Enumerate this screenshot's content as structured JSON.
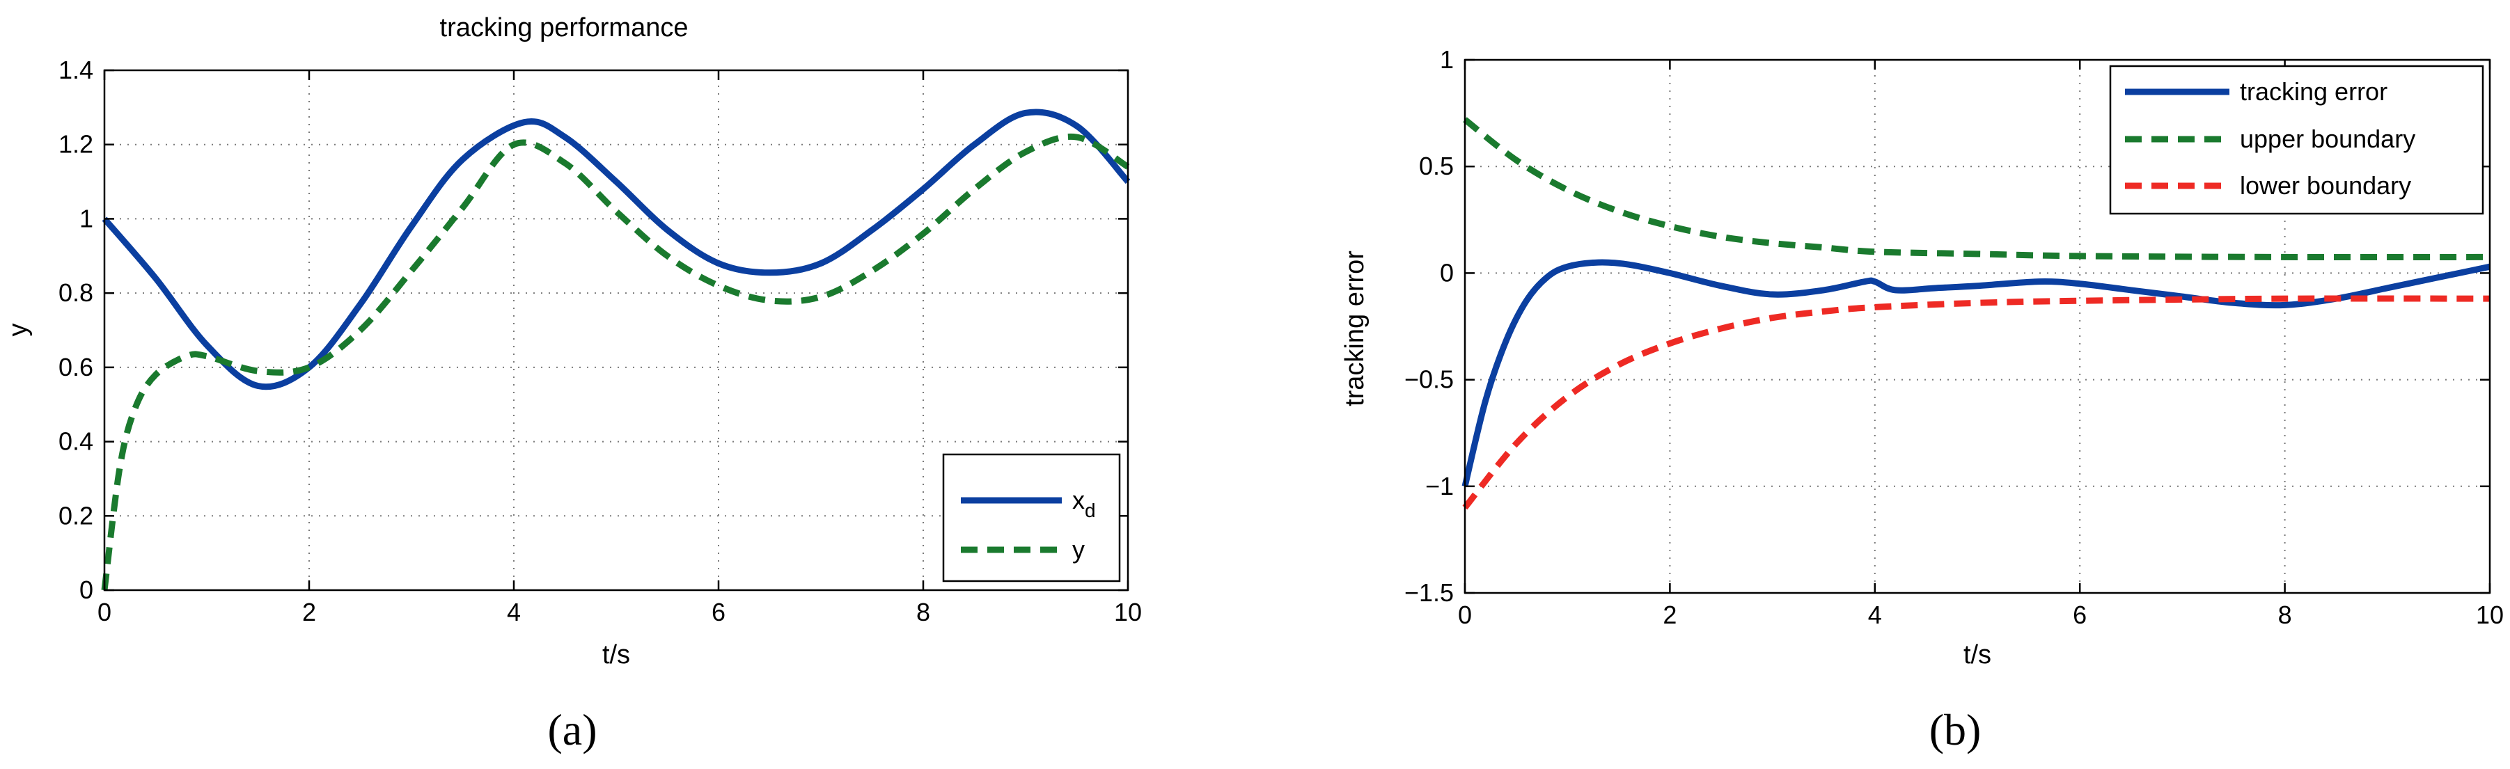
{
  "chart_data": [
    {
      "type": "line",
      "title": "tracking performance",
      "xlabel": "t/s",
      "ylabel": "y",
      "xlim": [
        0,
        10
      ],
      "ylim": [
        0,
        1.4
      ],
      "xticks": [
        0,
        2,
        4,
        6,
        8,
        10
      ],
      "xtick_labels": [
        "0",
        "2",
        "4",
        "6",
        "8",
        "10"
      ],
      "yticks": [
        0,
        0.2,
        0.4,
        0.6,
        0.8,
        1,
        1.2,
        1.4
      ],
      "ytick_labels": [
        "0",
        "0.2",
        "0.4",
        "0.6",
        "0.8",
        "1",
        "1.2",
        "1.4"
      ],
      "grid": true,
      "legend_position": "bottom-right",
      "caption": "(a)",
      "series": [
        {
          "name": "x",
          "subscript": "d",
          "color": "#0b3fa0",
          "dash": "solid",
          "points": [
            [
              0,
              1.0
            ],
            [
              0.5,
              0.84
            ],
            [
              1.0,
              0.66
            ],
            [
              1.5,
              0.55
            ],
            [
              2.0,
              0.6
            ],
            [
              2.5,
              0.77
            ],
            [
              3.0,
              0.98
            ],
            [
              3.5,
              1.16
            ],
            [
              4.1,
              1.26
            ],
            [
              4.5,
              1.22
            ],
            [
              5.0,
              1.1
            ],
            [
              5.5,
              0.97
            ],
            [
              6.0,
              0.88
            ],
            [
              6.5,
              0.855
            ],
            [
              7.0,
              0.88
            ],
            [
              7.5,
              0.97
            ],
            [
              8.0,
              1.08
            ],
            [
              8.5,
              1.2
            ],
            [
              9.0,
              1.285
            ],
            [
              9.5,
              1.25
            ],
            [
              10.0,
              1.1
            ]
          ]
        },
        {
          "name": "y",
          "color": "#1a7a2e",
          "dash": "dashed",
          "points": [
            [
              0,
              0.0
            ],
            [
              0.15,
              0.33
            ],
            [
              0.3,
              0.49
            ],
            [
              0.5,
              0.58
            ],
            [
              0.8,
              0.63
            ],
            [
              1.0,
              0.63
            ],
            [
              1.5,
              0.59
            ],
            [
              2.0,
              0.6
            ],
            [
              2.5,
              0.7
            ],
            [
              3.0,
              0.86
            ],
            [
              3.5,
              1.03
            ],
            [
              4.0,
              1.2
            ],
            [
              4.5,
              1.15
            ],
            [
              5.0,
              1.02
            ],
            [
              5.5,
              0.9
            ],
            [
              6.0,
              0.82
            ],
            [
              6.5,
              0.78
            ],
            [
              7.0,
              0.79
            ],
            [
              7.5,
              0.86
            ],
            [
              8.0,
              0.96
            ],
            [
              8.5,
              1.08
            ],
            [
              9.0,
              1.18
            ],
            [
              9.5,
              1.22
            ],
            [
              10.0,
              1.14
            ]
          ]
        }
      ]
    },
    {
      "type": "line",
      "title": "",
      "xlabel": "t/s",
      "ylabel": "tracking error",
      "xlim": [
        0,
        10
      ],
      "ylim": [
        -1.5,
        1
      ],
      "xticks": [
        0,
        2,
        4,
        6,
        8,
        10
      ],
      "xtick_labels": [
        "0",
        "2",
        "4",
        "6",
        "8",
        "10"
      ],
      "yticks": [
        -1.5,
        -1,
        -0.5,
        0,
        0.5,
        1
      ],
      "ytick_labels": [
        "−1.5",
        "−1",
        "−0.5",
        "0",
        "0.5",
        "1"
      ],
      "grid": true,
      "legend_position": "top-right",
      "caption": "(b)",
      "series": [
        {
          "name": "tracking error",
          "color": "#0b3fa0",
          "dash": "solid",
          "points": [
            [
              0,
              -1.0
            ],
            [
              0.2,
              -0.6
            ],
            [
              0.4,
              -0.32
            ],
            [
              0.6,
              -0.13
            ],
            [
              0.8,
              -0.02
            ],
            [
              1.0,
              0.03
            ],
            [
              1.3,
              0.05
            ],
            [
              1.6,
              0.04
            ],
            [
              2.0,
              0.0
            ],
            [
              2.5,
              -0.06
            ],
            [
              3.0,
              -0.1
            ],
            [
              3.5,
              -0.08
            ],
            [
              3.9,
              -0.04
            ],
            [
              4.0,
              -0.04
            ],
            [
              4.2,
              -0.08
            ],
            [
              4.6,
              -0.07
            ],
            [
              5.0,
              -0.06
            ],
            [
              5.6,
              -0.04
            ],
            [
              6.0,
              -0.05
            ],
            [
              6.5,
              -0.08
            ],
            [
              7.0,
              -0.11
            ],
            [
              7.5,
              -0.14
            ],
            [
              8.0,
              -0.15
            ],
            [
              8.5,
              -0.12
            ],
            [
              9.0,
              -0.07
            ],
            [
              9.5,
              -0.02
            ],
            [
              10.0,
              0.03
            ]
          ]
        },
        {
          "name": "upper boundary",
          "color": "#1a7a2e",
          "dash": "dashed",
          "points": [
            [
              0,
              0.72
            ],
            [
              0.5,
              0.53
            ],
            [
              1.0,
              0.39
            ],
            [
              1.5,
              0.29
            ],
            [
              2.0,
              0.22
            ],
            [
              2.5,
              0.17
            ],
            [
              3.0,
              0.14
            ],
            [
              3.5,
              0.12
            ],
            [
              4.0,
              0.1
            ],
            [
              5.0,
              0.09
            ],
            [
              6.0,
              0.08
            ],
            [
              8.0,
              0.075
            ],
            [
              10.0,
              0.075
            ]
          ]
        },
        {
          "name": "lower boundary",
          "color": "#ee2a24",
          "dash": "dashed",
          "points": [
            [
              0,
              -1.1
            ],
            [
              0.5,
              -0.8
            ],
            [
              1.0,
              -0.58
            ],
            [
              1.5,
              -0.43
            ],
            [
              2.0,
              -0.33
            ],
            [
              2.5,
              -0.26
            ],
            [
              3.0,
              -0.21
            ],
            [
              3.5,
              -0.18
            ],
            [
              4.0,
              -0.16
            ],
            [
              5.0,
              -0.14
            ],
            [
              6.0,
              -0.13
            ],
            [
              8.0,
              -0.12
            ],
            [
              10.0,
              -0.12
            ]
          ]
        }
      ]
    }
  ]
}
